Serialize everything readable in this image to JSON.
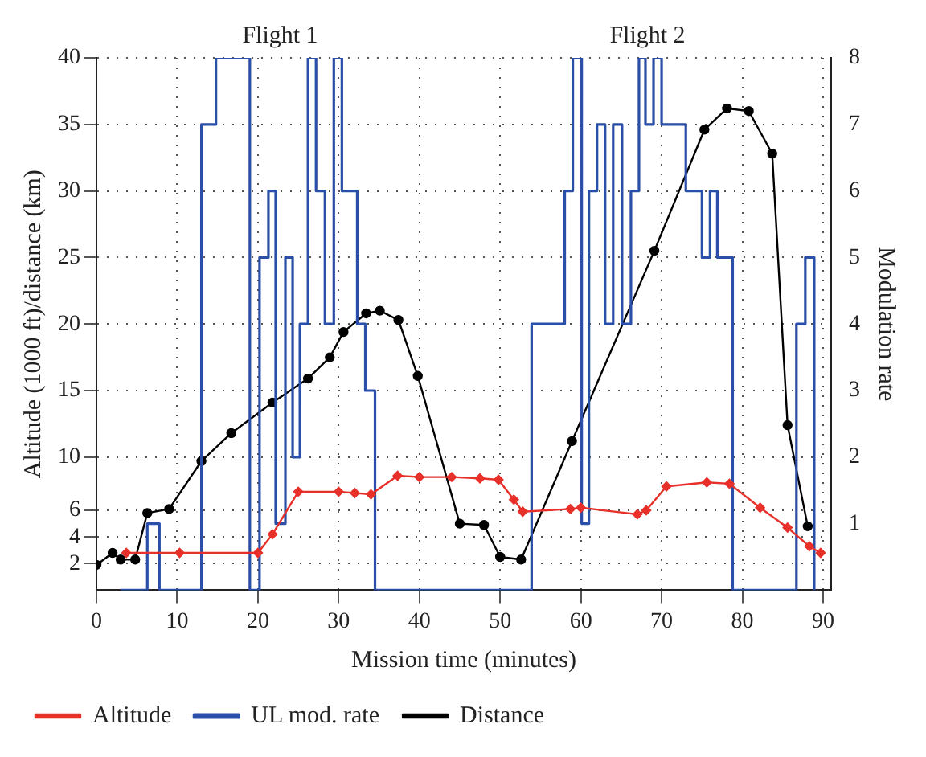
{
  "chart_data": {
    "type": "line",
    "xlabel": "Mission time (minutes)",
    "ylabel": "Altitude (1000 ft)/distance (km)",
    "y2label": "Modulation rate",
    "annotations": [
      "Flight 1",
      "Flight 2"
    ],
    "xlim": [
      0,
      91
    ],
    "xticks": [
      0,
      10,
      20,
      30,
      40,
      50,
      60,
      70,
      80,
      90
    ],
    "ylim": [
      0,
      40
    ],
    "yticks": [
      2,
      4,
      6,
      10,
      15,
      20,
      25,
      30,
      35,
      40
    ],
    "y2lim": [
      0,
      8
    ],
    "y2ticks": [
      1,
      2,
      3,
      4,
      5,
      6,
      7,
      8
    ],
    "grid": true,
    "legend": "bottom",
    "series": [
      {
        "name": "Altitude",
        "color": "#e8302a",
        "marker": "diamond",
        "x": [
          3.7,
          10.3,
          20,
          21.8,
          25,
          30,
          32,
          34,
          37.3,
          40,
          44,
          47.5,
          49.8,
          51.7,
          52.8,
          58.7,
          60,
          67,
          68.1,
          70.6,
          75.6,
          78.4,
          82.2,
          85.6,
          88.3,
          89.7
        ],
        "values": [
          2.8,
          2.8,
          2.8,
          4.2,
          7.4,
          7.4,
          7.3,
          7.2,
          8.6,
          8.5,
          8.5,
          8.4,
          8.3,
          6.8,
          5.9,
          6.1,
          6.2,
          5.7,
          6.0,
          7.8,
          8.1,
          8.0,
          6.2,
          4.7,
          3.3,
          2.8
        ]
      },
      {
        "name": "UL mod. rate",
        "type": "step",
        "axis": "y2",
        "color": "#2a4fa8",
        "marker": "none",
        "x": [
          3,
          6.3,
          7.8,
          13,
          14.8,
          19,
          20.2,
          21.3,
          22.2,
          23.4,
          24.3,
          25.2,
          26.2,
          27.2,
          28.3,
          29.4,
          30.4,
          32.3,
          33.3,
          34.5,
          53.9,
          58,
          59,
          60.1,
          61,
          62,
          63,
          64,
          65.1,
          66.2,
          67.2,
          68,
          69,
          70,
          73,
          75,
          76,
          76.9,
          78.8,
          86.7,
          87.8,
          88.9
        ],
        "values": [
          0,
          1,
          0,
          7,
          8,
          0,
          5,
          6,
          1,
          5,
          2,
          4,
          8,
          6,
          4,
          8,
          6,
          4,
          3,
          0,
          4,
          6,
          8,
          1,
          6,
          7,
          4,
          7,
          4,
          6,
          8,
          7,
          8,
          7,
          6,
          5,
          6,
          5,
          0,
          4,
          5,
          0
        ]
      },
      {
        "name": "Distance",
        "color": "#000000",
        "marker": "circle",
        "x": [
          0,
          2,
          3,
          4.8,
          6.3,
          9,
          13,
          16.7,
          21.8,
          26.2,
          28.9,
          30.6,
          33.4,
          35.1,
          37.4,
          39.8,
          45,
          48,
          50,
          52.6,
          58.9,
          69.1,
          75.3,
          78.1,
          80.8,
          83.7,
          85.6,
          88.1
        ],
        "values": [
          1.9,
          2.8,
          2.3,
          2.3,
          5.8,
          6.1,
          9.7,
          11.8,
          14.1,
          15.9,
          17.5,
          19.4,
          20.8,
          21.0,
          20.3,
          16.1,
          5.0,
          4.9,
          2.5,
          2.3,
          11.2,
          25.5,
          34.6,
          36.2,
          36.0,
          32.8,
          12.4,
          4.8
        ]
      }
    ]
  }
}
